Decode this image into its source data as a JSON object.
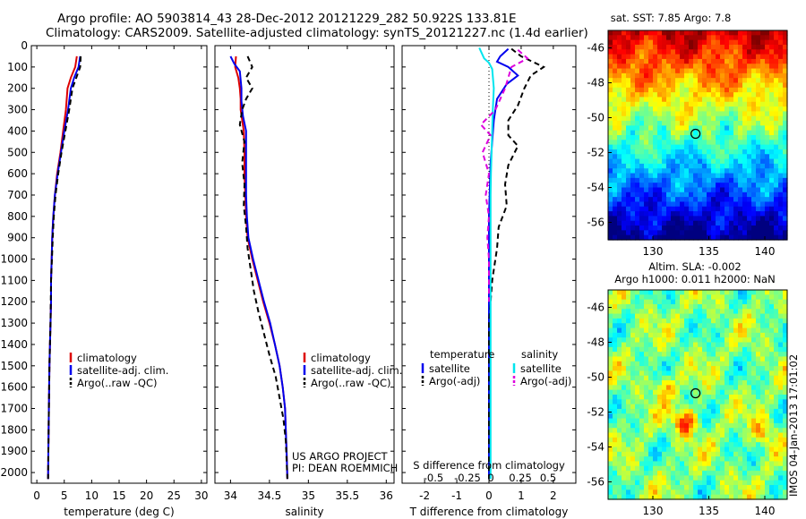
{
  "header": {
    "line1": "Argo profile: AO 5903814_43 28-Dec-2012 20121229_282 50.922S 133.81E",
    "line2": "Climatology: CARS2009. Satellite-adjusted climatology: synTS_20121227.nc (1.4d earlier)"
  },
  "colors": {
    "climatology": "#dd0000",
    "satellite": "#0000ee",
    "argo": "#000000",
    "sal_satellite": "#00e5ee",
    "sal_argo": "#dd00dd"
  },
  "chart_data": [
    {
      "type": "line",
      "panel": "temperature",
      "xlabel": "temperature (deg C)",
      "ylabel": "",
      "xlim": [
        -1,
        31
      ],
      "ylim": [
        2050,
        0
      ],
      "xticks": [
        0,
        5,
        10,
        15,
        20,
        25,
        30
      ],
      "yticks": [
        0,
        100,
        200,
        300,
        400,
        500,
        600,
        700,
        800,
        900,
        1000,
        1100,
        1200,
        1300,
        1400,
        1500,
        1600,
        1700,
        1800,
        1900,
        2000
      ],
      "legend": [
        "climatology",
        "satellite-adj. clim.",
        "Argo(..raw -QC)"
      ],
      "series": [
        {
          "name": "climatology",
          "style": "solid",
          "color": "#dd0000",
          "x": [
            7.3,
            7.0,
            6.2,
            5.6,
            5.3,
            4.8,
            4.3,
            3.7,
            3.3,
            3.0,
            2.8,
            2.7,
            2.6,
            2.6,
            2.5,
            2.4,
            2.3,
            2.25,
            2.2,
            2.15,
            2.1,
            2.05
          ],
          "y": [
            50,
            100,
            150,
            200,
            300,
            400,
            500,
            600,
            700,
            800,
            900,
            1000,
            1100,
            1200,
            1300,
            1400,
            1500,
            1600,
            1700,
            1800,
            1900,
            2030
          ]
        },
        {
          "name": "satellite-adj. clim.",
          "style": "solid",
          "color": "#0000ee",
          "x": [
            7.9,
            7.6,
            6.8,
            6.2,
            5.7,
            5.0,
            4.4,
            3.8,
            3.3,
            3.0,
            2.8,
            2.7,
            2.6,
            2.6,
            2.5,
            2.4,
            2.3,
            2.25,
            2.2,
            2.15,
            2.1,
            2.05
          ],
          "y": [
            50,
            100,
            150,
            200,
            300,
            400,
            500,
            600,
            700,
            800,
            900,
            1000,
            1100,
            1200,
            1300,
            1400,
            1500,
            1600,
            1700,
            1800,
            1900,
            2030
          ]
        },
        {
          "name": "Argo(..raw -QC)",
          "style": "dashed",
          "color": "#000000",
          "x": [
            8.0,
            7.9,
            7.2,
            6.5,
            5.9,
            5.2,
            4.5,
            3.9,
            3.4,
            3.1,
            2.9,
            2.75,
            2.6,
            2.55,
            2.5,
            2.4,
            2.3,
            2.25,
            2.2,
            2.15,
            2.1,
            2.05
          ],
          "y": [
            50,
            100,
            150,
            200,
            300,
            400,
            500,
            600,
            700,
            800,
            900,
            1000,
            1100,
            1200,
            1300,
            1400,
            1500,
            1600,
            1700,
            1800,
            1900,
            2030
          ]
        }
      ]
    },
    {
      "type": "line",
      "panel": "salinity",
      "xlabel": "salinity",
      "ylabel": "",
      "xlim": [
        33.8,
        36.1
      ],
      "ylim": [
        2050,
        0
      ],
      "xticks": [
        34,
        34.5,
        35,
        35.5,
        36
      ],
      "legend": [
        "climatology",
        "satellite-adj. clim.",
        "Argo(..raw -QC)"
      ],
      "annotation": [
        "US ARGO PROJECT",
        "PI: DEAN ROEMMICH"
      ],
      "series": [
        {
          "name": "climatology",
          "style": "solid",
          "color": "#dd0000",
          "x": [
            34.07,
            34.06,
            34.1,
            34.12,
            34.13,
            34.13,
            34.17,
            34.18,
            34.18,
            34.19,
            34.2,
            34.22,
            34.28,
            34.35,
            34.42,
            34.5,
            34.57,
            34.63,
            34.67,
            34.7,
            34.71,
            34.72,
            34.73
          ],
          "y": [
            50,
            100,
            150,
            200,
            250,
            300,
            400,
            500,
            600,
            700,
            800,
            900,
            1000,
            1100,
            1200,
            1300,
            1400,
            1500,
            1600,
            1700,
            1800,
            1900,
            2030
          ]
        },
        {
          "name": "satellite-adj. clim.",
          "style": "solid",
          "color": "#0000ee",
          "x": [
            34.0,
            34.05,
            34.12,
            34.14,
            34.14,
            34.16,
            34.2,
            34.2,
            34.2,
            34.2,
            34.21,
            34.23,
            34.29,
            34.36,
            34.43,
            34.51,
            34.57,
            34.63,
            34.67,
            34.7,
            34.71,
            34.72,
            34.73
          ],
          "y": [
            50,
            85,
            120,
            200,
            260,
            330,
            400,
            500,
            600,
            700,
            800,
            900,
            1000,
            1100,
            1200,
            1300,
            1400,
            1500,
            1600,
            1700,
            1800,
            1900,
            2030
          ]
        },
        {
          "name": "Argo(..raw -QC)",
          "style": "dashed",
          "color": "#000000",
          "x": [
            34.22,
            34.28,
            34.2,
            34.28,
            34.2,
            34.15,
            34.12,
            34.18,
            34.15,
            34.18,
            34.17,
            34.2,
            34.22,
            34.26,
            34.3,
            34.36,
            34.43,
            34.5,
            34.58,
            34.63,
            34.68,
            34.71,
            34.73
          ],
          "y": [
            50,
            100,
            150,
            200,
            250,
            300,
            370,
            450,
            550,
            650,
            750,
            850,
            950,
            1050,
            1150,
            1250,
            1350,
            1450,
            1550,
            1650,
            1750,
            1850,
            2030
          ]
        }
      ]
    },
    {
      "type": "line",
      "panel": "difference",
      "xlabel": "T difference from climatology",
      "xlabel_top": "S difference from climatology",
      "ylabel": "",
      "xlim": [
        -2.7,
        2.7
      ],
      "ylim": [
        2050,
        0
      ],
      "xticks": [
        -2,
        -1,
        0,
        1,
        2
      ],
      "xticklabels": [
        "-2",
        "-1",
        "0",
        "1",
        "2"
      ],
      "top_ticklabels": [
        "-0.5",
        "-0.25",
        "0",
        "0.25",
        "0.5"
      ],
      "legend_temperature": {
        "title": "temperature",
        "items": [
          "satellite",
          "Argo(-adj)"
        ]
      },
      "legend_salinity": {
        "title": "salinity",
        "items": [
          "satellite",
          "Argo(-adj)"
        ]
      },
      "series": [
        {
          "name": "satellite",
          "style": "solid",
          "color": "#0000ee",
          "x": [
            0.6,
            0.35,
            0.25,
            0.6,
            0.9,
            0.55,
            0.25,
            0.15,
            0.1,
            0.05,
            0.03,
            0.0,
            0.0,
            0.0,
            0.0,
            0.0,
            0.0,
            0.0,
            0.0,
            0.0
          ],
          "y": [
            15,
            50,
            75,
            100,
            140,
            180,
            250,
            350,
            450,
            550,
            650,
            800,
            1000,
            1200,
            1400,
            1600,
            1800,
            1900,
            2000,
            2030
          ]
        },
        {
          "name": "Argo(-adj)",
          "style": "dashed",
          "color": "#000000",
          "x": [
            0.7,
            1.0,
            1.7,
            1.3,
            1.1,
            0.9,
            0.6,
            0.6,
            0.9,
            0.6,
            0.5,
            0.55,
            0.3,
            0.25,
            0.1,
            0.0,
            0.0,
            0.0,
            0.0,
            0.0
          ],
          "y": [
            15,
            50,
            100,
            140,
            200,
            280,
            350,
            420,
            470,
            560,
            650,
            750,
            850,
            950,
            1100,
            1300,
            1500,
            1700,
            1900,
            2030
          ]
        },
        {
          "name": "salinity satellite",
          "style": "solid",
          "color": "#00e5ee",
          "x": [
            -0.3,
            -0.15,
            0.0,
            0.1,
            0.15,
            0.12,
            0.1,
            0.08,
            0.06,
            0.05,
            0.05,
            0.05,
            0.05,
            0.05,
            0.05,
            0.05,
            0.05,
            0.05,
            0.05,
            0.05,
            0.05
          ],
          "y": [
            10,
            60,
            80,
            110,
            200,
            300,
            400,
            500,
            600,
            700,
            800,
            900,
            1000,
            1100,
            1200,
            1300,
            1400,
            1500,
            1600,
            1800,
            2030
          ]
        },
        {
          "name": "salinity Argo(-adj)",
          "style": "dashed",
          "color": "#dd00dd",
          "x": [
            0.9,
            1.2,
            0.7,
            0.5,
            0.2,
            -0.25,
            0.05,
            -0.2,
            0.0,
            -0.1,
            0.0,
            -0.05,
            0.0,
            0.0,
            0.0
          ],
          "y": [
            20,
            60,
            100,
            200,
            300,
            370,
            420,
            500,
            600,
            700,
            800,
            900,
            1000,
            1100,
            1200
          ]
        }
      ]
    },
    {
      "type": "heatmap",
      "panel": "sst_map",
      "title": "sat. SST: 7.85 Argo: 7.8",
      "xticks": [
        130,
        135,
        140
      ],
      "yticks": [
        -46,
        -48,
        -50,
        -52,
        -54,
        -56
      ],
      "xlim": [
        126,
        142
      ],
      "ylim": [
        -57,
        -45
      ],
      "marker": [
        133.81,
        -50.922
      ]
    },
    {
      "type": "heatmap",
      "panel": "sla_map",
      "title": "Altim. SLA: -0.002",
      "subtitle": "Argo h1000: 0.011 h2000: NaN",
      "xticks": [
        130,
        135,
        140
      ],
      "yticks": [
        -46,
        -48,
        -50,
        -52,
        -54,
        -56
      ],
      "xlim": [
        126,
        142
      ],
      "ylim": [
        -57,
        -45
      ],
      "marker": [
        133.81,
        -50.922
      ]
    }
  ],
  "footer": {
    "imos_stamp": "IMOS 04-Jan-2013 17:01:02"
  }
}
